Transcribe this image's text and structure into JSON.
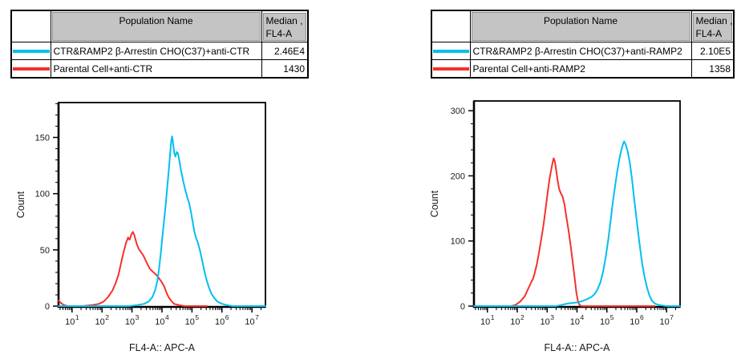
{
  "panels": [
    {
      "side": "left",
      "table": {
        "header": {
          "population": "Population Name",
          "median_line1": "Median ,",
          "median_line2": "FL4-A"
        },
        "rows": [
          {
            "swatch_color": "#00bff0",
            "name": "CTR&RAMP2 β-Arrestin CHO(C37)+anti-CTR",
            "median": "2.46E4"
          },
          {
            "swatch_color": "#f5312b",
            "name": "Parental Cell+anti-CTR",
            "median": "1430"
          }
        ]
      }
    },
    {
      "side": "right",
      "table": {
        "header": {
          "population": "Population Name",
          "median_line1": "Median ,",
          "median_line2": "FL4-A"
        },
        "rows": [
          {
            "swatch_color": "#00bff0",
            "name": "CTR&RAMP2 β-Arrestin CHO(C37)+anti-RAMP2",
            "median": "2.10E5"
          },
          {
            "swatch_color": "#f5312b",
            "name": "Parental Cell+anti-RAMP2",
            "median": "1358"
          }
        ]
      }
    }
  ],
  "chart_data": [
    {
      "type": "line",
      "subtype": "flow-cytometry-histogram",
      "title": "",
      "xlabel": "FL4-A:: APC-A",
      "ylabel": "Count",
      "x_scale": "log10",
      "x_log_range": [
        0.55,
        7.45
      ],
      "x_major_exponents": [
        1,
        2,
        3,
        4,
        5,
        6,
        7
      ],
      "ylim": [
        0,
        181
      ],
      "y_ticks": [
        0,
        50,
        100,
        150
      ],
      "y_minor_step": 10,
      "grid": false,
      "legend_position": "none",
      "series": [
        {
          "name": "Parental Cell+anti-CTR",
          "color": "#f5312b",
          "points_log10x_count": [
            [
              0.55,
              5
            ],
            [
              0.62,
              3
            ],
            [
              0.72,
              1
            ],
            [
              0.85,
              0
            ],
            [
              1.35,
              0
            ],
            [
              1.7,
              1
            ],
            [
              1.9,
              2
            ],
            [
              2.05,
              4
            ],
            [
              2.2,
              8
            ],
            [
              2.35,
              14
            ],
            [
              2.45,
              20
            ],
            [
              2.55,
              28
            ],
            [
              2.65,
              40
            ],
            [
              2.72,
              48
            ],
            [
              2.8,
              56
            ],
            [
              2.87,
              61
            ],
            [
              2.92,
              59
            ],
            [
              2.98,
              64
            ],
            [
              3.03,
              66
            ],
            [
              3.08,
              63
            ],
            [
              3.15,
              56
            ],
            [
              3.22,
              51
            ],
            [
              3.3,
              48
            ],
            [
              3.38,
              45
            ],
            [
              3.45,
              41
            ],
            [
              3.52,
              37
            ],
            [
              3.6,
              33
            ],
            [
              3.68,
              31
            ],
            [
              3.76,
              29
            ],
            [
              3.84,
              27
            ],
            [
              3.92,
              24
            ],
            [
              4.0,
              21
            ],
            [
              4.08,
              17
            ],
            [
              4.15,
              12
            ],
            [
              4.22,
              8
            ],
            [
              4.3,
              5
            ],
            [
              4.4,
              2
            ],
            [
              4.55,
              1
            ],
            [
              4.75,
              0
            ],
            [
              5.5,
              0
            ]
          ]
        },
        {
          "name": "CTR&RAMP2 β-Arrestin CHO(C37)+anti-CTR",
          "color": "#00bff0",
          "points_log10x_count": [
            [
              0.55,
              0
            ],
            [
              2.9,
              0
            ],
            [
              3.2,
              1
            ],
            [
              3.4,
              2
            ],
            [
              3.55,
              4
            ],
            [
              3.68,
              8
            ],
            [
              3.78,
              15
            ],
            [
              3.85,
              23
            ],
            [
              3.9,
              33
            ],
            [
              3.96,
              47
            ],
            [
              4.02,
              63
            ],
            [
              4.08,
              79
            ],
            [
              4.13,
              92
            ],
            [
              4.18,
              107
            ],
            [
              4.23,
              122
            ],
            [
              4.27,
              135
            ],
            [
              4.31,
              147
            ],
            [
              4.34,
              151
            ],
            [
              4.37,
              145
            ],
            [
              4.41,
              136
            ],
            [
              4.45,
              133
            ],
            [
              4.49,
              137
            ],
            [
              4.53,
              136
            ],
            [
              4.58,
              129
            ],
            [
              4.64,
              120
            ],
            [
              4.7,
              112
            ],
            [
              4.77,
              104
            ],
            [
              4.84,
              97
            ],
            [
              4.9,
              92
            ],
            [
              4.97,
              83
            ],
            [
              5.03,
              74
            ],
            [
              5.08,
              66
            ],
            [
              5.13,
              61
            ],
            [
              5.2,
              56
            ],
            [
              5.27,
              49
            ],
            [
              5.33,
              42
            ],
            [
              5.4,
              33
            ],
            [
              5.48,
              24
            ],
            [
              5.56,
              17
            ],
            [
              5.65,
              11
            ],
            [
              5.75,
              7
            ],
            [
              5.85,
              4
            ],
            [
              6.0,
              2
            ],
            [
              6.15,
              1
            ],
            [
              6.35,
              0
            ],
            [
              7.45,
              0
            ]
          ]
        }
      ]
    },
    {
      "type": "line",
      "subtype": "flow-cytometry-histogram",
      "title": "",
      "xlabel": "FL4-A:: APC-A",
      "ylabel": "Count",
      "x_scale": "log10",
      "x_log_range": [
        0.55,
        7.45
      ],
      "x_major_exponents": [
        1,
        2,
        3,
        4,
        5,
        6,
        7
      ],
      "ylim": [
        0,
        315
      ],
      "y_ticks": [
        0,
        100,
        200,
        300
      ],
      "y_minor_step": 20,
      "grid": false,
      "legend_position": "none",
      "series": [
        {
          "name": "Parental Cell+anti-RAMP2",
          "color": "#f5312b",
          "points_log10x_count": [
            [
              1.8,
              0
            ],
            [
              1.95,
              2
            ],
            [
              2.1,
              7
            ],
            [
              2.25,
              15
            ],
            [
              2.35,
              25
            ],
            [
              2.42,
              32
            ],
            [
              2.48,
              38
            ],
            [
              2.52,
              41
            ],
            [
              2.58,
              50
            ],
            [
              2.65,
              63
            ],
            [
              2.72,
              80
            ],
            [
              2.8,
              102
            ],
            [
              2.88,
              125
            ],
            [
              2.95,
              150
            ],
            [
              3.02,
              175
            ],
            [
              3.08,
              195
            ],
            [
              3.13,
              208
            ],
            [
              3.18,
              220
            ],
            [
              3.22,
              227
            ],
            [
              3.26,
              222
            ],
            [
              3.3,
              210
            ],
            [
              3.35,
              193
            ],
            [
              3.4,
              180
            ],
            [
              3.46,
              173
            ],
            [
              3.52,
              168
            ],
            [
              3.58,
              156
            ],
            [
              3.65,
              135
            ],
            [
              3.72,
              115
            ],
            [
              3.8,
              88
            ],
            [
              3.87,
              62
            ],
            [
              3.93,
              40
            ],
            [
              3.98,
              20
            ],
            [
              4.03,
              8
            ],
            [
              4.08,
              2
            ],
            [
              4.15,
              0
            ],
            [
              6.6,
              0
            ]
          ]
        },
        {
          "name": "CTR&RAMP2 β-Arrestin CHO(C37)+anti-RAMP2",
          "color": "#00bff0",
          "points_log10x_count": [
            [
              0.55,
              0
            ],
            [
              3.3,
              0
            ],
            [
              3.5,
              2
            ],
            [
              3.7,
              4
            ],
            [
              3.9,
              5
            ],
            [
              4.05,
              6
            ],
            [
              4.2,
              8
            ],
            [
              4.35,
              11
            ],
            [
              4.48,
              14
            ],
            [
              4.58,
              18
            ],
            [
              4.68,
              25
            ],
            [
              4.78,
              36
            ],
            [
              4.87,
              52
            ],
            [
              4.96,
              75
            ],
            [
              5.05,
              103
            ],
            [
              5.13,
              133
            ],
            [
              5.2,
              160
            ],
            [
              5.28,
              186
            ],
            [
              5.35,
              208
            ],
            [
              5.42,
              226
            ],
            [
              5.48,
              239
            ],
            [
              5.54,
              249
            ],
            [
              5.58,
              253
            ],
            [
              5.63,
              248
            ],
            [
              5.7,
              237
            ],
            [
              5.77,
              220
            ],
            [
              5.84,
              196
            ],
            [
              5.9,
              170
            ],
            [
              5.97,
              143
            ],
            [
              6.04,
              115
            ],
            [
              6.11,
              90
            ],
            [
              6.18,
              66
            ],
            [
              6.26,
              45
            ],
            [
              6.34,
              29
            ],
            [
              6.42,
              17
            ],
            [
              6.5,
              9
            ],
            [
              6.6,
              4
            ],
            [
              6.72,
              2
            ],
            [
              6.85,
              1
            ],
            [
              7.0,
              0
            ],
            [
              7.45,
              0
            ]
          ]
        }
      ]
    }
  ]
}
